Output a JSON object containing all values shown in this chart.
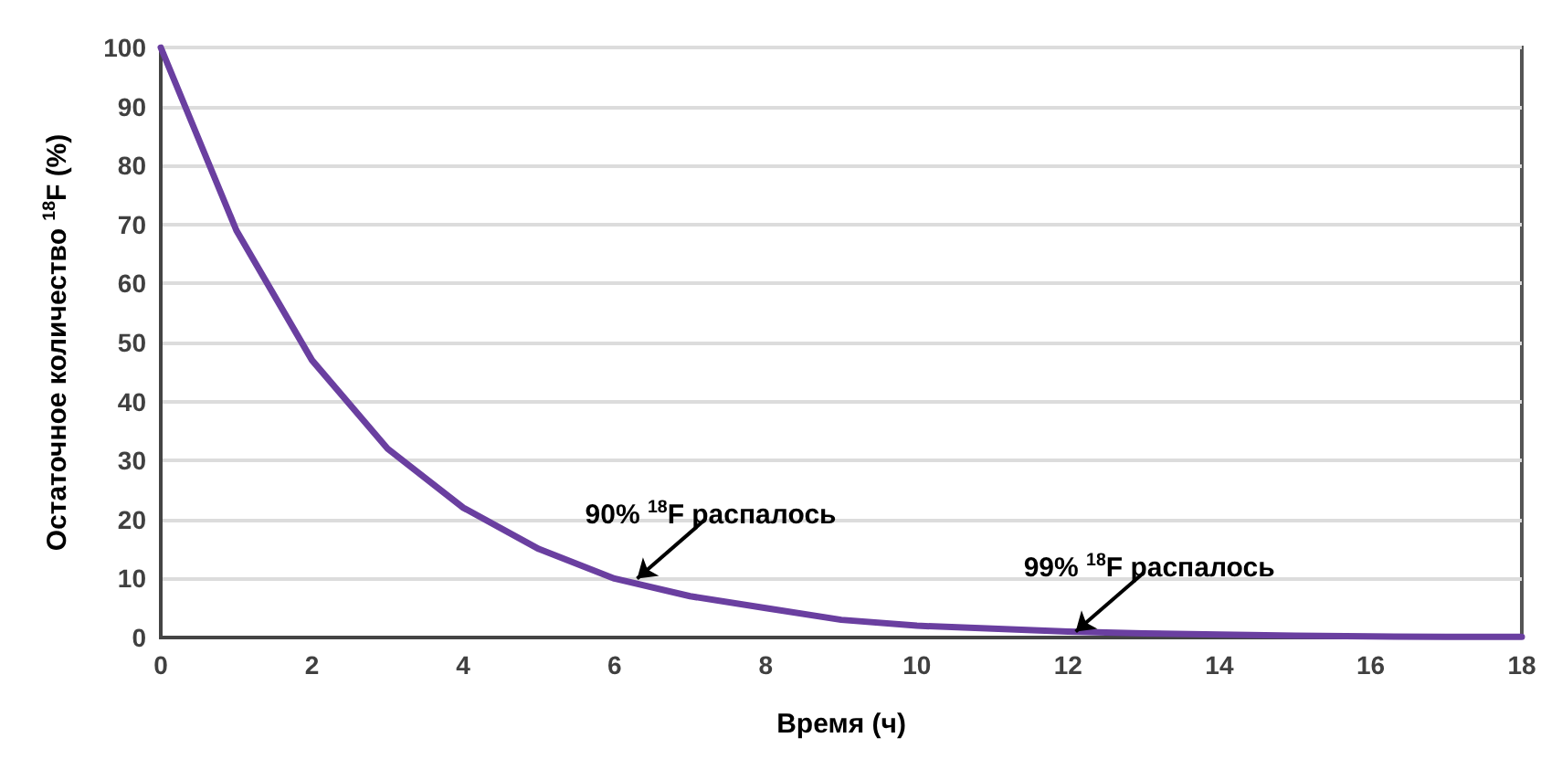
{
  "chart_data": {
    "type": "line",
    "xlabel": "Время (ч)",
    "ylabel": "Остаточное количество $^{18}$F (%)",
    "x": [
      0,
      1,
      2,
      3,
      4,
      5,
      6,
      7,
      8,
      9,
      10,
      11,
      12,
      13,
      14,
      15,
      16,
      17,
      18
    ],
    "series": [
      {
        "color": "#6a3fa0",
        "values": [
          100,
          69,
          47,
          32,
          22,
          15,
          10,
          7,
          5,
          3,
          2,
          1.5,
          1,
          0.7,
          0.5,
          0.3,
          0.2,
          0.1,
          0.1
        ]
      }
    ],
    "xlim": [
      0,
      18
    ],
    "xticks": [
      0,
      2,
      4,
      6,
      8,
      10,
      12,
      14,
      16,
      18
    ],
    "ylim": [
      0,
      100
    ],
    "yticks": [
      0,
      10,
      20,
      30,
      40,
      50,
      60,
      70,
      80,
      90,
      100
    ],
    "grid": "y",
    "marker": "none",
    "line_style": "solid",
    "annotations": [
      {
        "text": "90% $^{18}$F распалось",
        "x": 6.3,
        "y": 10
      },
      {
        "text": "99% $^{18}$F распалось",
        "x": 12.1,
        "y": 1
      }
    ]
  }
}
